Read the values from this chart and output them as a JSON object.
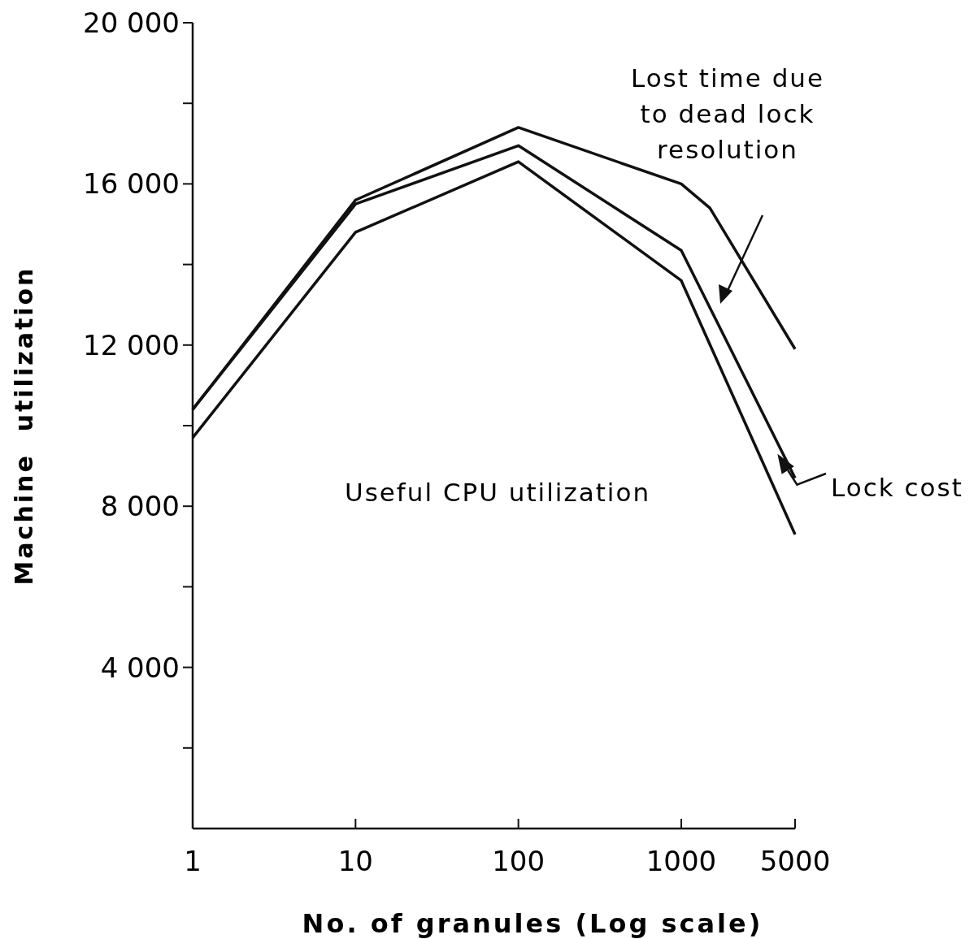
{
  "chart_data": {
    "type": "line",
    "xlabel": "No. of granules (Log scale)",
    "ylabel": "Machine  utilization",
    "log": "x",
    "series": [
      {
        "color": "#111111",
        "x": [
          1,
          10,
          100,
          1000,
          1500,
          5000
        ],
        "values": [
          10400,
          15600,
          17400,
          16000,
          15400,
          11900
        ]
      },
      {
        "color": "#111111",
        "x": [
          1,
          10,
          100,
          1000,
          5000
        ],
        "values": [
          10400,
          15500,
          16950,
          14350,
          8700
        ]
      },
      {
        "color": "#111111",
        "x": [
          1,
          10,
          100,
          1000,
          5000
        ],
        "values": [
          9700,
          14800,
          16550,
          13600,
          7300
        ]
      }
    ],
    "xlim": [
      1,
      5000
    ],
    "xticks": [
      1,
      10,
      100,
      1000,
      5000
    ],
    "ylim": [
      0,
      20000
    ],
    "yticks": [
      {
        "value": 2000,
        "label": null
      },
      {
        "value": 4000,
        "label": "4 000"
      },
      {
        "value": 6000,
        "label": null
      },
      {
        "value": 8000,
        "label": "8 000"
      },
      {
        "value": 10000,
        "label": null
      },
      {
        "value": 12000,
        "label": "12 000"
      },
      {
        "value": 14000,
        "label": null
      },
      {
        "value": 16000,
        "label": "16 000"
      },
      {
        "value": 18000,
        "label": null
      },
      {
        "value": 20000,
        "label": "20 000"
      }
    ],
    "grid": false,
    "marker": "none",
    "line_style": "solid",
    "annotations": [
      "Lost time due\nto dead lock\nresolution",
      "Useful CPU utilization",
      {
        "text": "Lock cost",
        "x": 3900,
        "y": 9300
      }
    ]
  }
}
